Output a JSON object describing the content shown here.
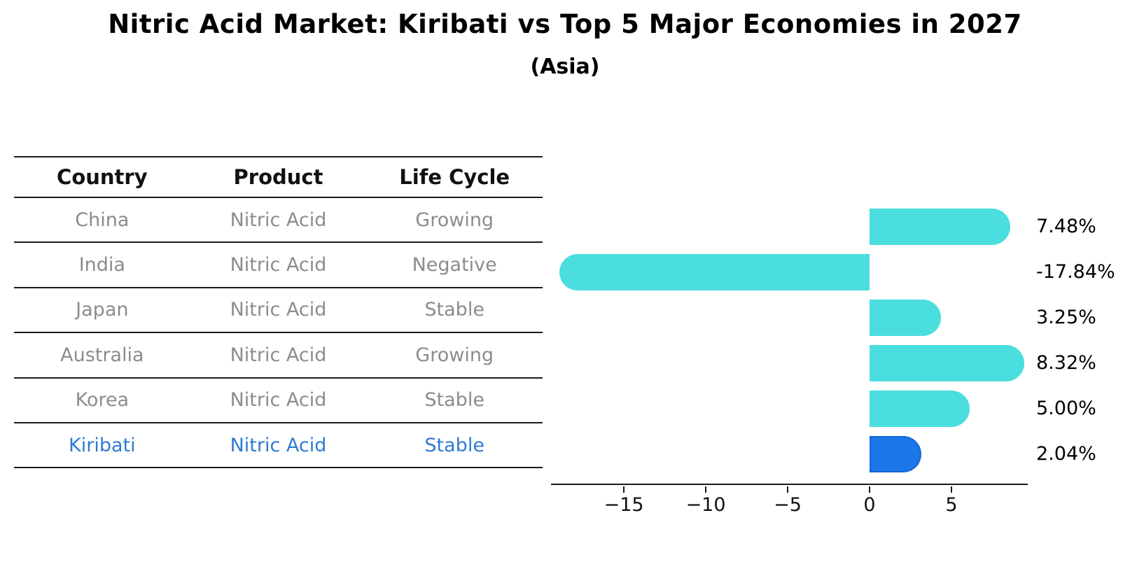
{
  "chart_data": {
    "type": "bar",
    "orientation": "horizontal",
    "title": "Nitric Acid Market: Kiribati vs Top 5 Major Economies in 2027",
    "subtitle": "(Asia)",
    "categories": [
      "China",
      "India",
      "Japan",
      "Australia",
      "Korea",
      "Kiribati"
    ],
    "values": [
      7.48,
      -17.84,
      3.25,
      8.32,
      5.0,
      2.04
    ],
    "value_labels": [
      "7.48%",
      "-17.84%",
      "3.25%",
      "8.32%",
      "5.00%",
      "2.04%"
    ],
    "x_ticks": [
      -15,
      -10,
      -5,
      0,
      5
    ],
    "x_tick_labels": [
      "−15",
      "−10",
      "−5",
      "0",
      "5"
    ],
    "xlim": [
      -19.45,
      9.66
    ],
    "xlabel": "",
    "ylabel": "",
    "grid": false,
    "legend": false,
    "bar_color": "#4ade df",
    "highlight_index": 5
  },
  "style_colors": {
    "bar_cyan": "#4adedf",
    "bar_highlight_blue": "#1a77e8",
    "highlight_border_blue": "#1256c4",
    "highlight_text_blue": "#2e7bd1",
    "row_text_gray": "#8c8c8c",
    "line_black": "#1b1b1b"
  },
  "table": {
    "columns": [
      "Country",
      "Product",
      "Life Cycle"
    ],
    "rows": [
      {
        "country": "China",
        "product": "Nitric Acid",
        "life_cycle": "Growing",
        "highlight": false
      },
      {
        "country": "India",
        "product": "Nitric Acid",
        "life_cycle": "Negative",
        "highlight": false
      },
      {
        "country": "Japan",
        "product": "Nitric Acid",
        "life_cycle": "Stable",
        "highlight": false
      },
      {
        "country": "Australia",
        "product": "Nitric Acid",
        "life_cycle": "Growing",
        "highlight": false
      },
      {
        "country": "Korea",
        "product": "Nitric Acid",
        "life_cycle": "Stable",
        "highlight": false
      },
      {
        "country": "Kiribati",
        "product": "Nitric Acid",
        "life_cycle": "Stable",
        "highlight": true
      }
    ]
  }
}
